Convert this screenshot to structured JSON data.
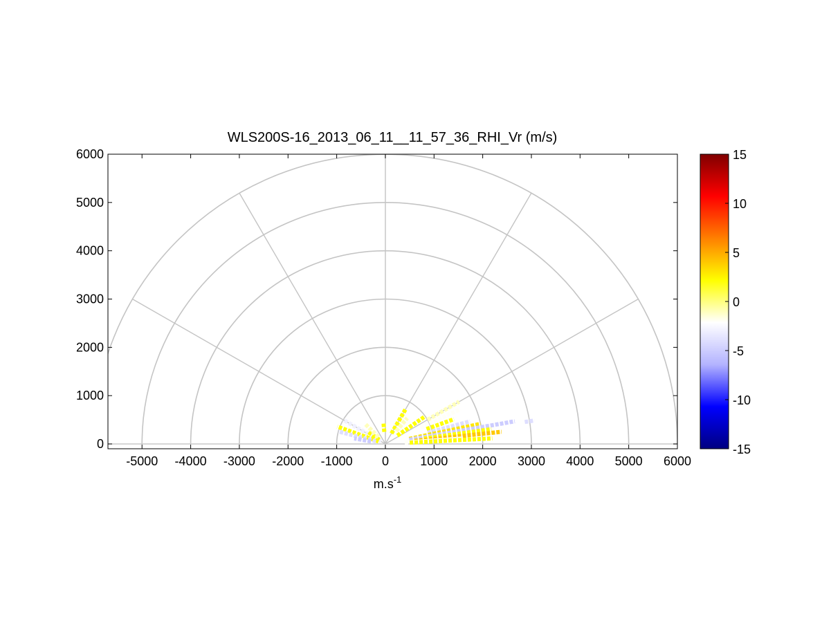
{
  "chart_data": {
    "type": "scatter",
    "plot_kind": "polar-rhi",
    "title": "WLS200S-16_2013_06_11__11_57_36_RHI_Vr (m/s)",
    "xlabel": "m.s",
    "xlabel_superscript": "-1",
    "ylabel": "",
    "xlim": [
      -5700,
      6000
    ],
    "ylim": [
      -100,
      6000
    ],
    "x_ticks": [
      -5000,
      -4000,
      -3000,
      -2000,
      -1000,
      0,
      1000,
      2000,
      3000,
      4000,
      5000,
      6000
    ],
    "y_ticks": [
      0,
      1000,
      2000,
      3000,
      4000,
      5000,
      6000
    ],
    "polar_grid": {
      "range_rings": [
        1000,
        2000,
        3000,
        4000,
        5000,
        6000
      ],
      "spokes_deg": [
        0,
        30,
        60,
        90,
        120,
        150,
        180
      ]
    },
    "colorbar": {
      "range": [
        -15,
        15
      ],
      "ticks": [
        15,
        10,
        5,
        0,
        -5,
        -10,
        -15
      ],
      "colormap": [
        "#800000",
        "#ff0000",
        "#ff8000",
        "#ffff00",
        "#ffffff",
        "#b3b3ff",
        "#0000ff",
        "#000080"
      ]
    },
    "rays": [
      {
        "elevation_deg": 150,
        "start": 100,
        "end": 1000,
        "vr": -3
      },
      {
        "elevation_deg": 160,
        "start": 150,
        "end": 1050,
        "vr": 2
      },
      {
        "elevation_deg": 165,
        "start": 200,
        "end": 1000,
        "vr": -4
      },
      {
        "elevation_deg": 145,
        "start": 150,
        "end": 450,
        "vr": 2
      },
      {
        "elevation_deg": 170,
        "start": 300,
        "end": 650,
        "vr": -5
      },
      {
        "elevation_deg": 135,
        "start": 200,
        "end": 600,
        "vr": -1
      },
      {
        "elevation_deg": 95,
        "start": 250,
        "end": 450,
        "vr": 2
      },
      {
        "elevation_deg": 60,
        "start": 250,
        "end": 850,
        "vr": 2
      },
      {
        "elevation_deg": 50,
        "start": 350,
        "end": 700,
        "vr": -1
      },
      {
        "elevation_deg": 35,
        "start": 300,
        "end": 1000,
        "vr": 2
      },
      {
        "elevation_deg": 30,
        "start": 1000,
        "end": 1750,
        "vr": -1
      },
      {
        "elevation_deg": 25,
        "start": 800,
        "end": 1700,
        "vr": -2
      },
      {
        "elevation_deg": 20,
        "start": 900,
        "end": 1500,
        "vr": 2
      },
      {
        "elevation_deg": 15,
        "start": 900,
        "end": 1800,
        "vr": -4
      },
      {
        "elevation_deg": 12,
        "start": 500,
        "end": 2000,
        "vr": 3
      },
      {
        "elevation_deg": 10,
        "start": 500,
        "end": 2700,
        "vr": -5
      },
      {
        "elevation_deg": 9,
        "start": 2900,
        "end": 3100,
        "vr": -4
      },
      {
        "elevation_deg": 8,
        "start": 800,
        "end": 2200,
        "vr": 2
      },
      {
        "elevation_deg": 6,
        "start": 600,
        "end": 2400,
        "vr": 4
      },
      {
        "elevation_deg": 4,
        "start": 400,
        "end": 1600,
        "vr": -2
      },
      {
        "elevation_deg": 3,
        "start": 500,
        "end": 2200,
        "vr": 2
      }
    ]
  }
}
